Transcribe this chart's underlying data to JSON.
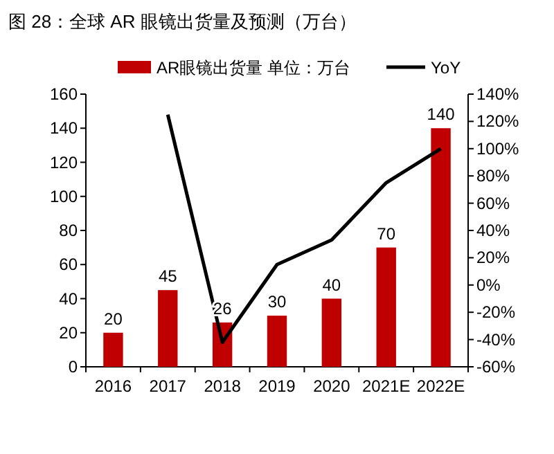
{
  "chart_data": {
    "type": "bar",
    "title": "图 28：全球 AR 眼镜出货量及预测（万台）",
    "categories": [
      "2016",
      "2017",
      "2018",
      "2019",
      "2020",
      "2021E",
      "2022E"
    ],
    "series": [
      {
        "name": "AR眼镜出货量 单位：万台",
        "color": "#c00000",
        "values": [
          20,
          45,
          26,
          30,
          40,
          70,
          140
        ],
        "value_labels": [
          "20",
          "45",
          "26",
          "30",
          "40",
          "70",
          "140"
        ]
      },
      {
        "name": "YoY",
        "type": "line",
        "axis": "y2",
        "color": "#000000",
        "values": [
          null,
          125,
          -42,
          15,
          33,
          75,
          100
        ]
      }
    ],
    "ylim": [
      0,
      160
    ],
    "yticks": [
      0,
      20,
      40,
      60,
      80,
      100,
      120,
      140,
      160
    ],
    "y2lim": [
      -60,
      140
    ],
    "y2ticks": [
      {
        "value": -60,
        "label": "-60%"
      },
      {
        "value": -40,
        "label": "-40%"
      },
      {
        "value": -20,
        "label": "-20%"
      },
      {
        "value": 0,
        "label": "0%"
      },
      {
        "value": 20,
        "label": "20%"
      },
      {
        "value": 40,
        "label": "40%"
      },
      {
        "value": 60,
        "label": "60%"
      },
      {
        "value": 80,
        "label": "80%"
      },
      {
        "value": 100,
        "label": "100%"
      },
      {
        "value": 120,
        "label": "120%"
      },
      {
        "value": 140,
        "label": "140%"
      }
    ],
    "legend": "top",
    "grid": false,
    "line_style": "solid"
  }
}
